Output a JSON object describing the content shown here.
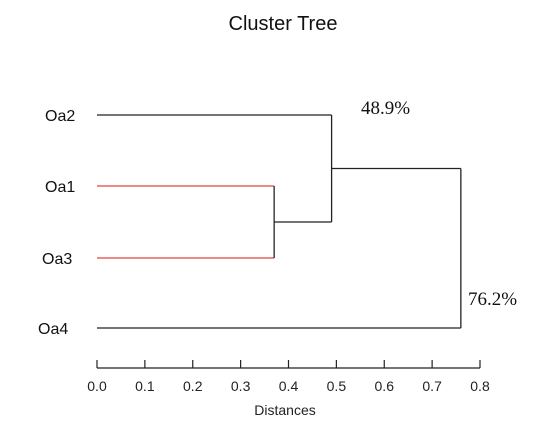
{
  "chart_data": {
    "type": "dendrogram",
    "title": "Cluster Tree",
    "xlabel": "Distances",
    "xlim": [
      0.0,
      0.8
    ],
    "x_ticks": [
      "0.0",
      "0.1",
      "0.2",
      "0.3",
      "0.4",
      "0.5",
      "0.6",
      "0.7",
      "0.8"
    ],
    "leaves": [
      "Oa2",
      "Oa1",
      "Oa3",
      "Oa4"
    ],
    "merges": [
      {
        "children": [
          "Oa1",
          "Oa3"
        ],
        "distance": 0.37,
        "color": "#e8423f"
      },
      {
        "children": [
          "Oa2",
          "Oa1+Oa3"
        ],
        "distance": 0.49,
        "color": "#222222"
      },
      {
        "children": [
          "Oa2+Oa1+Oa3",
          "Oa4"
        ],
        "distance": 0.76,
        "color": "#222222"
      }
    ],
    "annotations": [
      "48.9%",
      "76.2%"
    ],
    "grid": false
  }
}
